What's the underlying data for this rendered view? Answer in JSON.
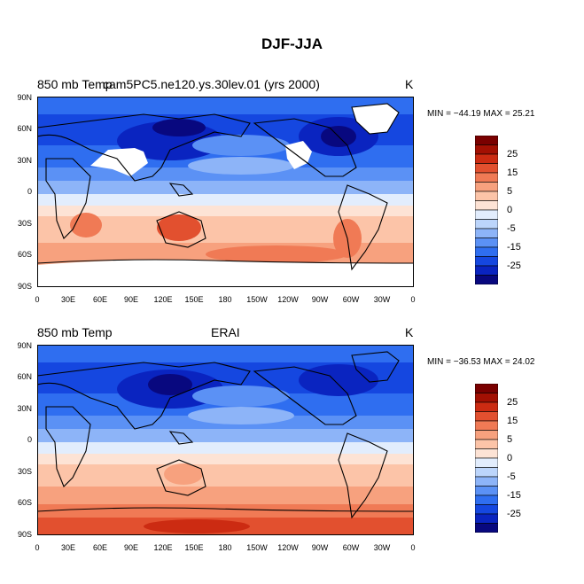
{
  "title": "DJF-JJA",
  "colors": {
    "scale": [
      "#08087f",
      "#0a24c0",
      "#1547e0",
      "#2f6ef0",
      "#5b91f5",
      "#8db4f8",
      "#bcd5fb",
      "#e2edfd",
      "#fde3d5",
      "#fcc4a8",
      "#f7a17e",
      "#f07a55",
      "#e2502f",
      "#cc2b12",
      "#a31003",
      "#7a0000"
    ],
    "land_line": "#000000",
    "missing": "#ffffff"
  },
  "colorbar": {
    "labels": [
      "25",
      "15",
      "5",
      "0",
      "-5",
      "-15",
      "-25"
    ]
  },
  "axes": {
    "lat_labels": [
      "90N",
      "60N",
      "30N",
      "0",
      "30S",
      "60S",
      "90S"
    ],
    "lon_labels": [
      "0",
      "30E",
      "60E",
      "90E",
      "120E",
      "150E",
      "180",
      "150W",
      "120W",
      "90W",
      "60W",
      "30W",
      "0"
    ]
  },
  "panels": [
    {
      "variable": "850 mb Temp",
      "case": "cam5PC5.ne120.ys.30lev.01 (yrs 2000)",
      "units": "K",
      "stats_text": "MIN = −44.19  MAX =  25.21"
    },
    {
      "variable": "850 mb Temp",
      "case": "ERAI",
      "units": "K",
      "stats_text": "MIN = −36.53  MAX =  24.02"
    }
  ]
}
